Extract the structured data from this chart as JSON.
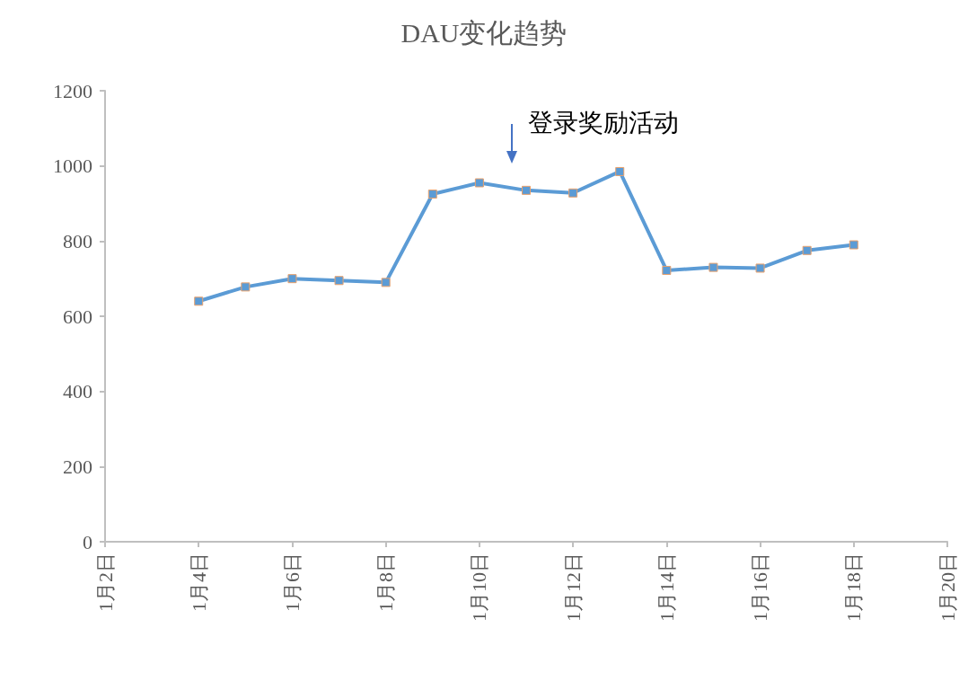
{
  "chart_data": {
    "type": "line",
    "title": "DAU变化趋势",
    "x": [
      "--01-04",
      "--01-05",
      "--01-06",
      "--01-07",
      "--01-08",
      "--01-09",
      "--01-10",
      "--01-11",
      "--01-12",
      "--01-13",
      "--01-14",
      "--01-15",
      "--01-16",
      "--01-17",
      "--01-18"
    ],
    "series": [
      {
        "color": "#5b9bd5",
        "values": [
          640,
          678,
          700,
          695,
          690,
          925,
          955,
          935,
          928,
          985,
          722,
          730,
          728,
          775,
          790
        ]
      }
    ],
    "xlim": [
      "--01-02",
      "--01-20"
    ],
    "xticks": [
      {
        "value": "--01-02",
        "label": "1月2日"
      },
      {
        "value": "--01-04",
        "label": "1月4日"
      },
      {
        "value": "--01-06",
        "label": "1月6日"
      },
      {
        "value": "--01-08",
        "label": "1月8日"
      },
      {
        "value": "--01-10",
        "label": "1月10日"
      },
      {
        "value": "--01-12",
        "label": "1月12日"
      },
      {
        "value": "--01-14",
        "label": "1月14日"
      },
      {
        "value": "--01-16",
        "label": "1月16日"
      },
      {
        "value": "--01-18",
        "label": "1月18日"
      },
      {
        "value": "--01-20",
        "label": "1月20日"
      }
    ],
    "ylim": [
      0,
      1200
    ],
    "yticks": [
      0,
      200,
      400,
      600,
      800,
      1000,
      1200
    ],
    "annotations": [
      "登录奖励活动"
    ],
    "grid": false,
    "marker": "square",
    "line_style": "solid"
  }
}
